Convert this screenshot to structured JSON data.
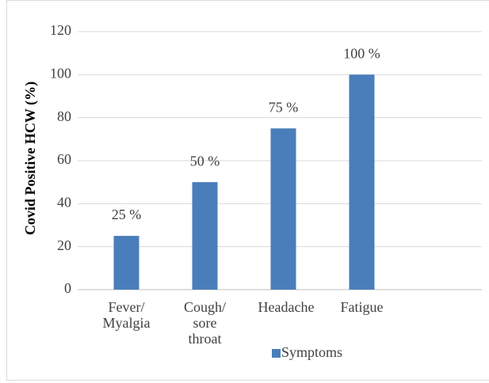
{
  "chart_data": {
    "type": "bar",
    "y_label": "Covid Positive HCW (%)",
    "categories": [
      "Fever/ Myalgia",
      "Cough/ sore throat",
      "Headache",
      "Fatigue",
      null
    ],
    "series": [
      {
        "name": "Symptoms",
        "color": "#4a7ebb",
        "values": [
          25,
          50,
          75,
          100,
          null
        ],
        "value_labels": [
          "25 %",
          "50 %",
          "75 %",
          "100 %",
          null
        ]
      }
    ],
    "ylim": [
      0,
      120
    ],
    "yticks": [
      0,
      20,
      40,
      60,
      80,
      100,
      120
    ],
    "grid": true,
    "legend": "bottom"
  }
}
